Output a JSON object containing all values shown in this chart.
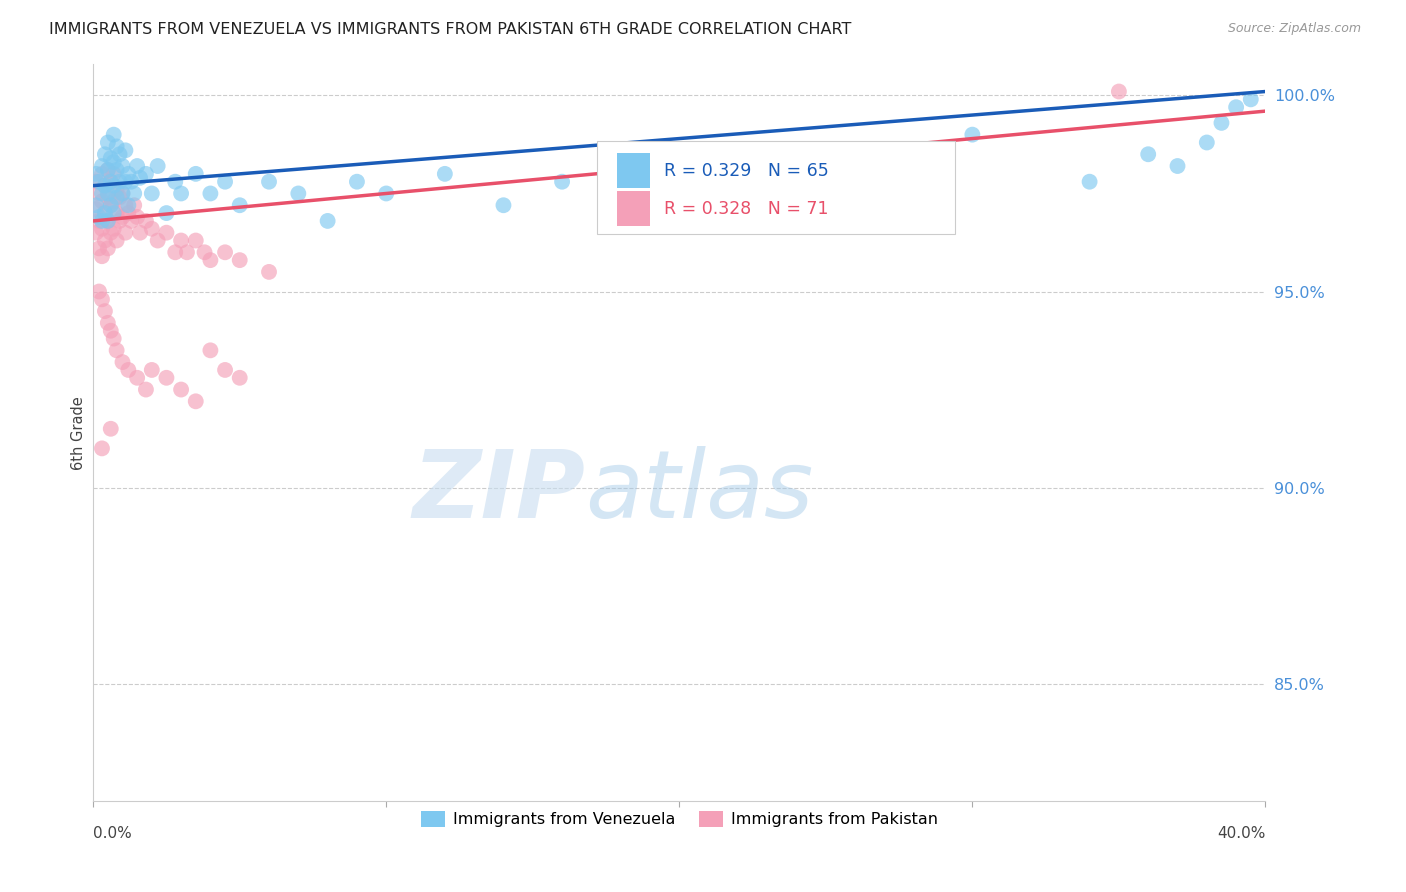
{
  "title": "IMMIGRANTS FROM VENEZUELA VS IMMIGRANTS FROM PAKISTAN 6TH GRADE CORRELATION CHART",
  "source": "Source: ZipAtlas.com",
  "ylabel": "6th Grade",
  "xmin": 0.0,
  "xmax": 0.4,
  "ymin": 0.82,
  "ymax": 1.008,
  "yticks": [
    0.85,
    0.9,
    0.95,
    1.0
  ],
  "ytick_labels": [
    "85.0%",
    "90.0%",
    "95.0%",
    "100.0%"
  ],
  "legend_r1": "R = 0.329",
  "legend_n1": "N = 65",
  "legend_r2": "R = 0.328",
  "legend_n2": "N = 71",
  "color_venezuela": "#7ec8f0",
  "color_pakistan": "#f4a0b8",
  "color_line_venezuela": "#1a5cb8",
  "color_line_pakistan": "#e8506a",
  "legend_label1": "Immigrants from Venezuela",
  "legend_label2": "Immigrants from Pakistan",
  "watermark_zip": "ZIP",
  "watermark_atlas": "atlas",
  "venezuela_x": [
    0.001,
    0.001,
    0.002,
    0.002,
    0.003,
    0.003,
    0.003,
    0.004,
    0.004,
    0.004,
    0.005,
    0.005,
    0.005,
    0.005,
    0.006,
    0.006,
    0.006,
    0.007,
    0.007,
    0.007,
    0.007,
    0.008,
    0.008,
    0.008,
    0.009,
    0.009,
    0.01,
    0.01,
    0.011,
    0.011,
    0.012,
    0.012,
    0.013,
    0.014,
    0.015,
    0.016,
    0.018,
    0.02,
    0.022,
    0.025,
    0.028,
    0.03,
    0.035,
    0.04,
    0.045,
    0.05,
    0.06,
    0.07,
    0.08,
    0.09,
    0.1,
    0.12,
    0.14,
    0.16,
    0.2,
    0.22,
    0.26,
    0.3,
    0.34,
    0.36,
    0.37,
    0.38,
    0.385,
    0.39,
    0.395
  ],
  "venezuela_y": [
    0.98,
    0.972,
    0.978,
    0.969,
    0.982,
    0.975,
    0.968,
    0.985,
    0.977,
    0.97,
    0.988,
    0.981,
    0.975,
    0.968,
    0.984,
    0.978,
    0.972,
    0.99,
    0.983,
    0.977,
    0.97,
    0.987,
    0.981,
    0.974,
    0.985,
    0.978,
    0.982,
    0.975,
    0.986,
    0.978,
    0.98,
    0.972,
    0.978,
    0.975,
    0.982,
    0.979,
    0.98,
    0.975,
    0.982,
    0.97,
    0.978,
    0.975,
    0.98,
    0.975,
    0.978,
    0.972,
    0.978,
    0.975,
    0.968,
    0.978,
    0.975,
    0.98,
    0.972,
    0.978,
    0.98,
    0.975,
    0.982,
    0.99,
    0.978,
    0.985,
    0.982,
    0.988,
    0.993,
    0.997,
    0.999
  ],
  "pakistan_x": [
    0.001,
    0.001,
    0.001,
    0.002,
    0.002,
    0.002,
    0.003,
    0.003,
    0.003,
    0.003,
    0.004,
    0.004,
    0.004,
    0.005,
    0.005,
    0.005,
    0.005,
    0.006,
    0.006,
    0.006,
    0.007,
    0.007,
    0.007,
    0.008,
    0.008,
    0.008,
    0.009,
    0.009,
    0.01,
    0.01,
    0.011,
    0.011,
    0.012,
    0.013,
    0.014,
    0.015,
    0.016,
    0.018,
    0.02,
    0.022,
    0.025,
    0.028,
    0.03,
    0.032,
    0.035,
    0.038,
    0.04,
    0.045,
    0.05,
    0.06,
    0.002,
    0.003,
    0.004,
    0.005,
    0.006,
    0.007,
    0.008,
    0.01,
    0.012,
    0.015,
    0.018,
    0.02,
    0.025,
    0.03,
    0.035,
    0.04,
    0.045,
    0.05,
    0.003,
    0.006,
    0.35
  ],
  "pakistan_y": [
    0.978,
    0.971,
    0.965,
    0.975,
    0.968,
    0.961,
    0.98,
    0.973,
    0.966,
    0.959,
    0.977,
    0.97,
    0.963,
    0.981,
    0.974,
    0.968,
    0.961,
    0.978,
    0.972,
    0.965,
    0.98,
    0.973,
    0.966,
    0.976,
    0.97,
    0.963,
    0.974,
    0.968,
    0.975,
    0.969,
    0.972,
    0.965,
    0.97,
    0.968,
    0.972,
    0.969,
    0.965,
    0.968,
    0.966,
    0.963,
    0.965,
    0.96,
    0.963,
    0.96,
    0.963,
    0.96,
    0.958,
    0.96,
    0.958,
    0.955,
    0.95,
    0.948,
    0.945,
    0.942,
    0.94,
    0.938,
    0.935,
    0.932,
    0.93,
    0.928,
    0.925,
    0.93,
    0.928,
    0.925,
    0.922,
    0.935,
    0.93,
    0.928,
    0.91,
    0.915,
    1.001
  ]
}
